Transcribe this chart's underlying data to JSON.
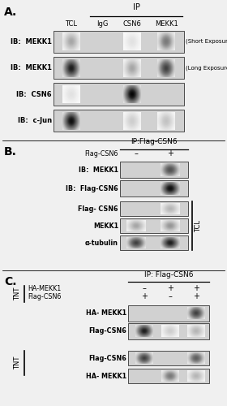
{
  "fig_bg": "#f0f0f0",
  "panel_bg": "#ffffff",
  "blot_bg": 0.82,
  "sections": {
    "A": {
      "label": "A.",
      "ip_header": "IP",
      "col_labels": [
        "TCL",
        "IgG",
        "CSN6",
        "MEKK1"
      ],
      "row_labels": [
        "IB:  MEKK1",
        "IB:  MEKK1",
        "IB:  CSN6",
        "IB:  c-Jun"
      ],
      "row_notes": [
        "(Short Exposure)",
        "(Long Exposure)",
        "",
        ""
      ],
      "bands": [
        [
          [
            0,
            0.45
          ],
          [
            2,
            0.2
          ],
          [
            3,
            0.6
          ]
        ],
        [
          [
            0,
            0.9
          ],
          [
            2,
            0.45
          ],
          [
            3,
            0.8
          ]
        ],
        [
          [
            0,
            0.2
          ],
          [
            2,
            0.98
          ]
        ],
        [
          [
            0,
            0.95
          ],
          [
            2,
            0.3
          ],
          [
            3,
            0.35
          ]
        ]
      ]
    },
    "B": {
      "label": "B.",
      "ip_header": "IP:Flag-CSN6",
      "flag_label": "Flag-CSN6",
      "col_signs": [
        "–",
        "+"
      ],
      "ip_row_labels": [
        "IB:  MEKK1",
        "IB:  Flag-CSN6"
      ],
      "ip_bands": [
        [
          [
            1,
            0.75
          ]
        ],
        [
          [
            1,
            0.95
          ]
        ]
      ],
      "tcl_label": "TCL",
      "tcl_row_labels": [
        "Flag- CSN6",
        "MEKK1",
        "α-tubulin"
      ],
      "tcl_bands": [
        [
          [
            1,
            0.4
          ]
        ],
        [
          [
            0,
            0.45
          ],
          [
            1,
            0.5
          ]
        ],
        [
          [
            0,
            0.8
          ],
          [
            1,
            0.9
          ]
        ]
      ]
    },
    "C": {
      "label": "C.",
      "ip_header": "IP: Flag-CSN6",
      "tnt_label": "TNT",
      "tnt_label2": "TNT",
      "input_row1": "HA-MEKK1",
      "input_row2": "Flag-CSN6",
      "col_signs1": [
        "–",
        "+",
        "+"
      ],
      "col_signs2": [
        "+",
        "–",
        "+"
      ],
      "ip_row_labels": [
        "HA- MEKK1",
        "Flag-CSN6"
      ],
      "ip_bands": [
        [
          [
            2,
            0.8
          ]
        ],
        [
          [
            0,
            0.9
          ],
          [
            1,
            0.3
          ],
          [
            2,
            0.4
          ]
        ]
      ],
      "tnt_row_labels": [
        "Flag-CSN6",
        "HA- MEKK1"
      ],
      "tnt_bands": [
        [
          [
            0,
            0.8
          ],
          [
            2,
            0.7
          ]
        ],
        [
          [
            1,
            0.6
          ],
          [
            2,
            0.4
          ]
        ]
      ]
    }
  }
}
